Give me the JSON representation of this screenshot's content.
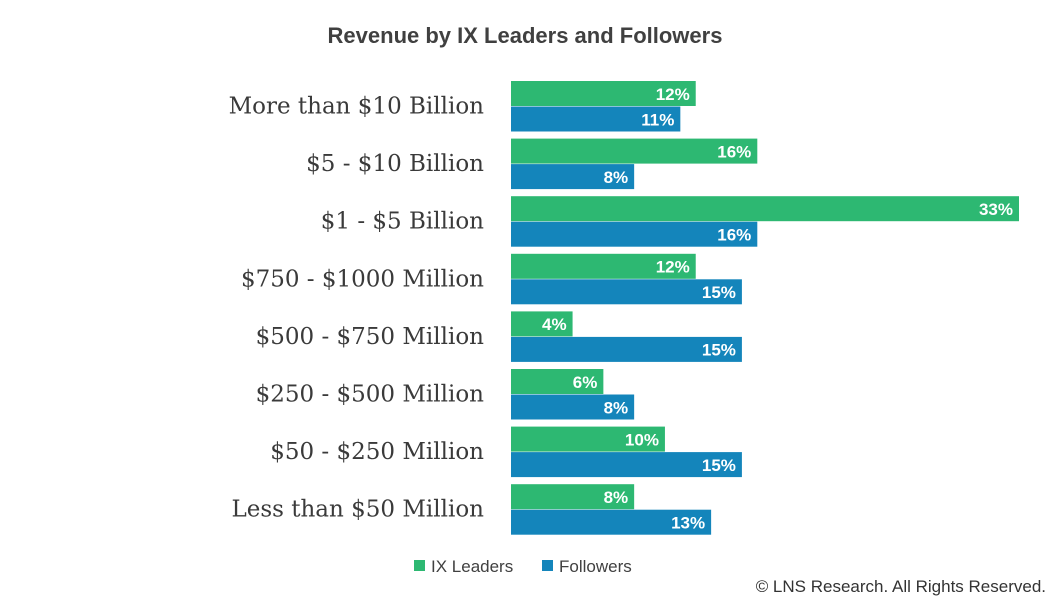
{
  "chart_data": {
    "type": "bar",
    "orientation": "horizontal",
    "title": "Revenue by IX Leaders and Followers",
    "categories": [
      "More than $10 Billion",
      "$5 - $10 Billion",
      "$1 - $5 Billion",
      "$750 - $1000 Million",
      "$500 - $750 Million",
      "$250 - $500 Million",
      "$50 - $250 Million",
      "Less than $50 Million"
    ],
    "series": [
      {
        "name": "IX Leaders",
        "color": "#2db872",
        "values": [
          12,
          16,
          33,
          12,
          4,
          6,
          10,
          8
        ]
      },
      {
        "name": "Followers",
        "color": "#1485bb",
        "values": [
          11,
          8,
          16,
          15,
          15,
          8,
          15,
          13
        ]
      }
    ],
    "value_suffix": "%",
    "xlim": [
      0,
      33
    ],
    "grid": false,
    "legend": "bottom"
  },
  "footer": {
    "copyright": "© LNS Research. All Rights Reserved."
  }
}
